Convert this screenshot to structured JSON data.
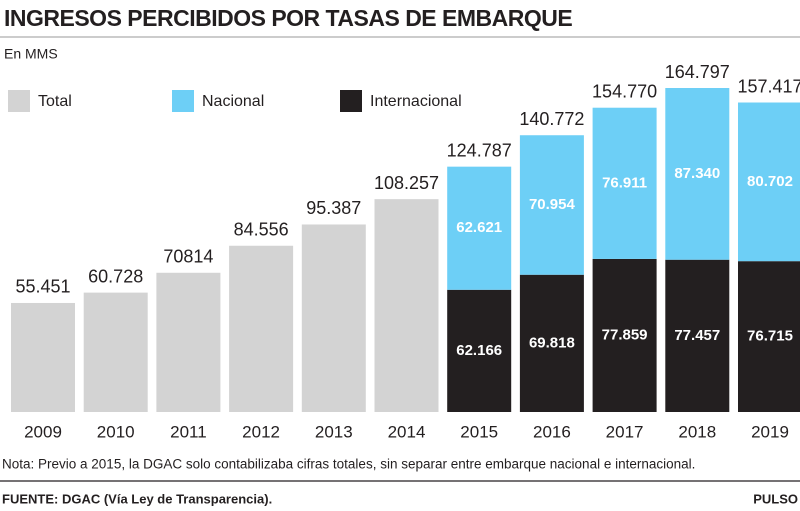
{
  "chart_data": {
    "type": "bar",
    "title": "INGRESOS PERCIBIDOS POR TASAS DE EMBARQUE",
    "subtitle": "En MMS",
    "categories": [
      "2009",
      "2010",
      "2011",
      "2012",
      "2013",
      "2014",
      "2015",
      "2016",
      "2017",
      "2018",
      "2019"
    ],
    "series": [
      {
        "name": "Total",
        "color": "#d3d3d3",
        "values": [
          55451,
          60728,
          70814,
          84556,
          95387,
          108257,
          124787,
          140772,
          154770,
          164797,
          157417
        ],
        "value_labels": [
          "55.451",
          "60.728",
          "70814",
          "84.556",
          "95.387",
          "108.257",
          "124.787",
          "140.772",
          "154.770",
          "164.797",
          "157.417"
        ]
      },
      {
        "name": "Nacional",
        "color": "#6dcff6",
        "values": [
          null,
          null,
          null,
          null,
          null,
          null,
          62621,
          70954,
          76911,
          87340,
          80702
        ],
        "value_labels": [
          null,
          null,
          null,
          null,
          null,
          null,
          "62.621",
          "70.954",
          "76.911",
          "87.340",
          "80.702"
        ]
      },
      {
        "name": "Internacional",
        "color": "#231f20",
        "values": [
          null,
          null,
          null,
          null,
          null,
          null,
          62166,
          69818,
          77859,
          77457,
          76715
        ],
        "value_labels": [
          null,
          null,
          null,
          null,
          null,
          null,
          "62.166",
          "69.818",
          "77.859",
          "77.457",
          "76.715"
        ]
      }
    ],
    "stacked": true
  },
  "footer": {
    "note": "Nota: Previo a 2015, la DGAC solo contabilizaba cifras totales, sin separar entre embarque nacional e internacional.",
    "source": "FUENTE: DGAC (Vía Ley de Transparencia).",
    "brand": "PULSO"
  }
}
